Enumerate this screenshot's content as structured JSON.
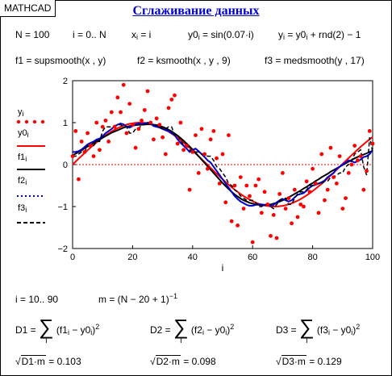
{
  "app": {
    "badge": "MATHCAD",
    "title": "Сглаживание данных"
  },
  "defs": {
    "n_def": "N = 100",
    "i_def": "i = 0.. N",
    "x_def_lhs": "x",
    "x_def_rhs": " = i",
    "y0_def_lhs": "y0",
    "y0_def_rhs": " = sin(0.07·i)",
    "y_def_lhs": "y",
    "y_def_mid": " = y0",
    "y_def_rhs": " + rnd(2) − 1",
    "f1_def": "f1 = supsmooth(x , y)",
    "f2_def": "f2 = ksmooth(x , y , 9)",
    "f3_def": "f3 = medsmooth(y , 17)"
  },
  "legend": {
    "y": "y",
    "y0": "y0",
    "f1": "f1",
    "f2": "f2",
    "f3": "f3",
    "sub_i": "i"
  },
  "colors": {
    "points": "#ff0000",
    "y0": "#ff0000",
    "f1": "#000000",
    "f2": "#0000cc",
    "f3": "#000000",
    "title": "#0000cc"
  },
  "chart_data": {
    "type": "line",
    "xlabel": "i",
    "xlim": [
      0,
      100
    ],
    "ylim": [
      -2,
      2
    ],
    "xticks": [
      "0",
      "20",
      "40",
      "60",
      "80",
      "100"
    ],
    "yticks": [
      "2",
      "1",
      "0",
      "−1",
      "−2"
    ],
    "y0_formula": "sin(0.07·i)",
    "series": [
      {
        "name": "y",
        "style": "red dots",
        "values": [
          0.2,
          0.8,
          -0.35,
          0.55,
          0.3,
          0.75,
          0.45,
          0.2,
          1.0,
          0.35,
          0.9,
          1.05,
          0.55,
          1.25,
          0.9,
          1.6,
          1.25,
          1.9,
          0.75,
          1.45,
          0.95,
          0.4,
          0.85,
          1.05,
          1.3,
          1.75,
          1.0,
          0.6,
          1.1,
          0.95,
          0.65,
          0.25,
          1.35,
          1.55,
          1.65,
          0.5,
          1.0,
          0.35,
          0.45,
          -0.6,
          0.3,
          0.7,
          -0.2,
          0.85,
          0.25,
          -0.1,
          0.6,
          0.8,
          0.15,
          -0.45,
          0.25,
          -0.9,
          0.7,
          -1.35,
          -0.5,
          -1.45,
          -0.3,
          -1.05,
          -0.5,
          -0.75,
          -1.85,
          -0.5,
          -0.35,
          -1.15,
          -0.65,
          -0.95,
          -1.7,
          -1.2,
          -1.75,
          -0.7,
          -0.2,
          -1.05,
          -0.8,
          -1.4,
          -0.6,
          -1.25,
          -0.95,
          -1.0,
          -0.4,
          -0.65,
          -0.1,
          -0.45,
          -1.15,
          0.25,
          -0.85,
          -0.6,
          0.4,
          -0.3,
          -0.45,
          0.2,
          -1.05,
          -0.8,
          -0.2,
          0.0,
          0.45,
          0.1,
          0.2,
          -0.6,
          -0.15,
          0.8,
          0.5
        ]
      },
      {
        "name": "y0",
        "style": "red solid",
        "values": []
      },
      {
        "name": "f1",
        "style": "black solid",
        "values": [
          0.22,
          0.26,
          0.3,
          0.34,
          0.39,
          0.43,
          0.47,
          0.52,
          0.56,
          0.6,
          0.64,
          0.68,
          0.72,
          0.76,
          0.79,
          0.82,
          0.85,
          0.88,
          0.9,
          0.92,
          0.93,
          0.94,
          0.95,
          0.95,
          0.96,
          0.96,
          0.96,
          0.95,
          0.94,
          0.92,
          0.9,
          0.87,
          0.83,
          0.79,
          0.74,
          0.69,
          0.63,
          0.57,
          0.5,
          0.43,
          0.36,
          0.28,
          0.2,
          0.12,
          0.04,
          -0.04,
          -0.12,
          -0.2,
          -0.28,
          -0.36,
          -0.44,
          -0.51,
          -0.58,
          -0.65,
          -0.71,
          -0.76,
          -0.81,
          -0.85,
          -0.88,
          -0.91,
          -0.93,
          -0.95,
          -0.96,
          -0.97,
          -0.97,
          -0.96,
          -0.95,
          -0.93,
          -0.91,
          -0.88,
          -0.85,
          -0.82,
          -0.78,
          -0.74,
          -0.7,
          -0.66,
          -0.62,
          -0.57,
          -0.53,
          -0.48,
          -0.44,
          -0.39,
          -0.35,
          -0.3,
          -0.26,
          -0.22,
          -0.17,
          -0.13,
          -0.09,
          -0.05,
          -0.01,
          0.03,
          0.07,
          0.11,
          0.15,
          0.18,
          0.21,
          0.24,
          0.27,
          0.3,
          0.33
        ]
      },
      {
        "name": "f2",
        "style": "blue dotted",
        "values": [
          0.3,
          0.3,
          0.32,
          0.36,
          0.42,
          0.48,
          0.52,
          0.55,
          0.6,
          0.62,
          0.68,
          0.75,
          0.8,
          0.85,
          0.92,
          0.95,
          0.98,
          0.96,
          0.9,
          0.88,
          0.92,
          0.96,
          0.98,
          0.97,
          0.98,
          1.0,
          0.98,
          0.92,
          0.9,
          0.88,
          0.85,
          0.82,
          0.8,
          0.75,
          0.7,
          0.6,
          0.52,
          0.45,
          0.38,
          0.3,
          0.35,
          0.38,
          0.32,
          0.25,
          0.18,
          0.1,
          0.05,
          -0.05,
          -0.15,
          -0.25,
          -0.35,
          -0.45,
          -0.55,
          -0.65,
          -0.75,
          -0.82,
          -0.88,
          -0.92,
          -0.96,
          -0.98,
          -0.98,
          -0.96,
          -0.95,
          -0.95,
          -0.96,
          -0.97,
          -0.98,
          -0.96,
          -0.9,
          -0.85,
          -0.82,
          -0.85,
          -0.88,
          -0.85,
          -0.78,
          -0.72,
          -0.7,
          -0.68,
          -0.62,
          -0.55,
          -0.5,
          -0.48,
          -0.45,
          -0.42,
          -0.38,
          -0.3,
          -0.25,
          -0.2,
          -0.1,
          -0.05,
          0.0,
          0.05,
          0.1,
          0.08,
          0.05,
          0.08,
          0.12,
          0.18,
          0.2,
          0.25,
          0.35
        ]
      },
      {
        "name": "f3",
        "style": "black dashed",
        "values": [
          0.2,
          0.2,
          0.25,
          0.3,
          0.3,
          0.45,
          0.45,
          0.45,
          0.55,
          0.55,
          0.8,
          0.9,
          0.9,
          0.9,
          0.9,
          0.95,
          0.95,
          0.9,
          0.9,
          0.75,
          0.75,
          0.85,
          0.85,
          0.95,
          0.95,
          1.0,
          1.0,
          0.95,
          0.95,
          0.9,
          0.85,
          0.85,
          0.9,
          0.9,
          0.7,
          0.7,
          0.6,
          0.45,
          0.45,
          0.35,
          0.3,
          0.3,
          0.3,
          0.25,
          0.25,
          0.2,
          0.2,
          0.1,
          -0.05,
          -0.1,
          -0.2,
          -0.3,
          -0.45,
          -0.5,
          -0.6,
          -0.65,
          -0.75,
          -0.8,
          -0.85,
          -0.85,
          -0.85,
          -0.9,
          -1.0,
          -1.0,
          -0.95,
          -0.95,
          -1.0,
          -1.05,
          -0.95,
          -0.85,
          -0.8,
          -0.8,
          -0.95,
          -0.95,
          -0.8,
          -0.7,
          -0.65,
          -0.65,
          -0.6,
          -0.5,
          -0.5,
          -0.45,
          -0.45,
          -0.45,
          -0.4,
          -0.4,
          -0.3,
          -0.3,
          -0.25,
          -0.2,
          -0.2,
          -0.05,
          0.0,
          0.1,
          0.25,
          0.3,
          0.35,
          -0.05,
          -0.25,
          0.65,
          0.3
        ]
      }
    ]
  },
  "bottom": {
    "i2_def": "i = 10.. 90",
    "m_def": "m = (N − 20 + 1)",
    "m_exp": "−1",
    "d1_lhs": "D1 =",
    "d1_term": "(f1",
    "d2_lhs": "D2 =",
    "d2_term": "(f2",
    "d3_lhs": "D3 =",
    "d3_term": "(f3",
    "minus_y0": " − y0",
    "close_paren": ")",
    "sq": "2",
    "sum_index": "i",
    "sum_sign": "∑",
    "sqrt_sign": "√",
    "r1_arg": "D1·m",
    "r1_val": " = 0.103",
    "r2_arg": "D2·m",
    "r2_val": " = 0.098",
    "r3_arg": "D3·m",
    "r3_val": " = 0.129"
  }
}
